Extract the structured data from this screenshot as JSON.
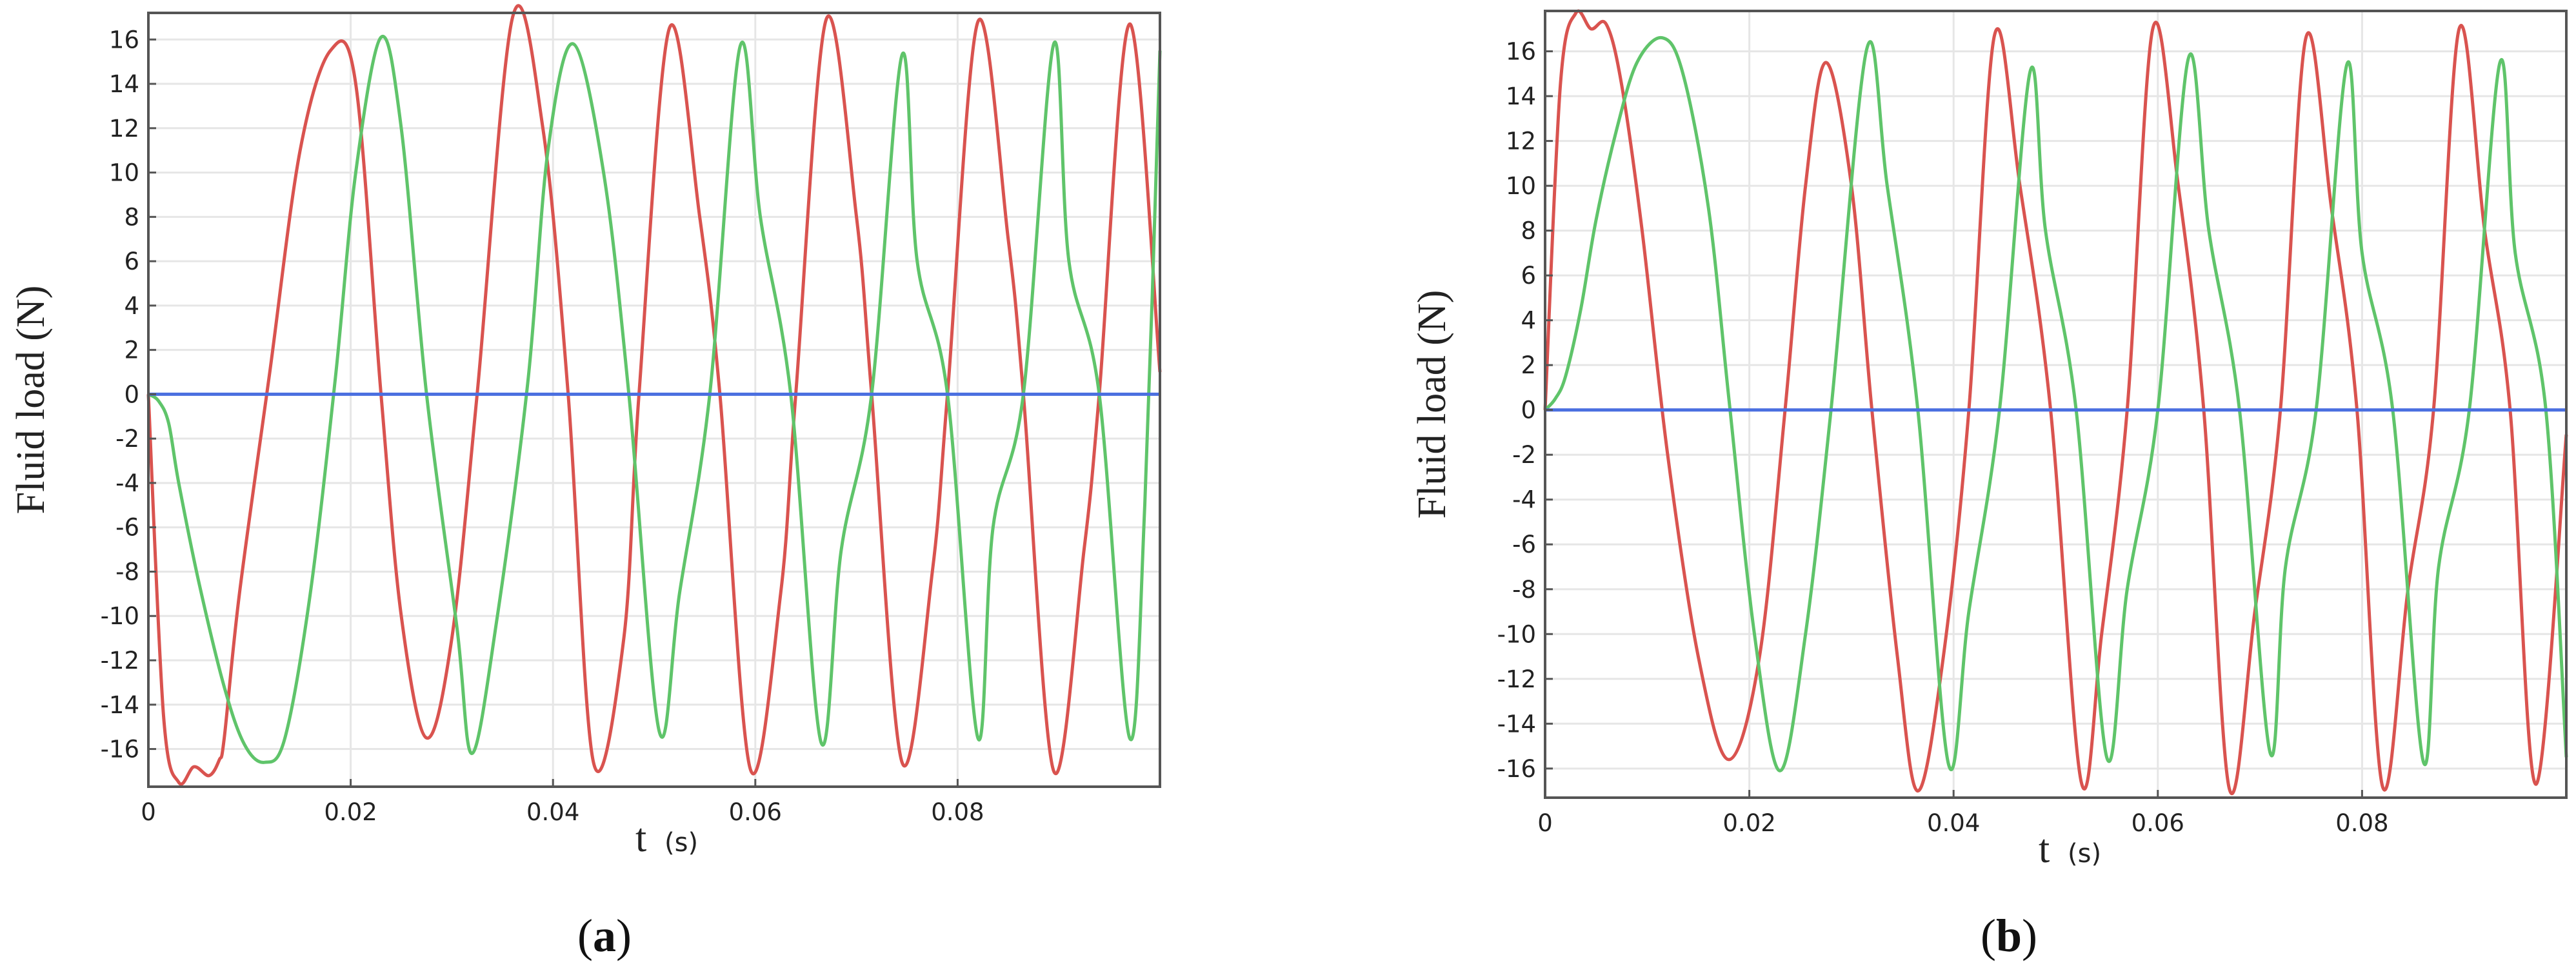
{
  "colors": {
    "red_series": "#d9534f",
    "green_series": "#5fc46a",
    "blue_series": "#4a6fe0",
    "grid": "#e6e6e6",
    "frame": "#555555"
  },
  "chart_data": [
    {
      "type": "line",
      "caption_letter": "a",
      "ylabel": "Fluid load",
      "yunit": "(N)",
      "xlabel": "t",
      "xunit": "(s)",
      "xlim": [
        0,
        0.1
      ],
      "ylim": [
        -17.7,
        17.2
      ],
      "xticks": [
        0,
        0.02,
        0.04,
        0.06,
        0.08
      ],
      "xtick_labels": [
        "0",
        "0.02",
        "0.04",
        "0.06",
        "0.08"
      ],
      "yticks": [
        -16,
        -14,
        -12,
        -10,
        -8,
        -6,
        -4,
        -2,
        0,
        2,
        4,
        6,
        8,
        10,
        12,
        14,
        16
      ],
      "ytick_labels": [
        "-16",
        "-14",
        "-12",
        "-10",
        "-8",
        "-6",
        "-4",
        "-2",
        "0",
        "2",
        "4",
        "6",
        "8",
        "10",
        "12",
        "14",
        "16"
      ],
      "grid": true,
      "series": [
        {
          "color_key": "red_series",
          "x": [
            0,
            0.0015,
            0.003,
            0.0045,
            0.006,
            0.007,
            0.0075,
            0.009,
            0.012,
            0.015,
            0.018,
            0.0205,
            0.023,
            0.025,
            0.0275,
            0.03,
            0.0325,
            0.036,
            0.039,
            0.0415,
            0.044,
            0.047,
            0.0485,
            0.0515,
            0.0545,
            0.0565,
            0.0595,
            0.0625,
            0.064,
            0.067,
            0.07,
            0.0715,
            0.0745,
            0.0775,
            0.079,
            0.082,
            0.085,
            0.0865,
            0.0895,
            0.0925,
            0.094,
            0.097,
            0.1
          ],
          "y": [
            0,
            -14.5,
            -17.5,
            -16.8,
            -17.2,
            -16.5,
            -15.5,
            -9,
            1,
            11,
            15.5,
            14,
            0,
            -10,
            -15.5,
            -11,
            0,
            17,
            12,
            0,
            -16.6,
            -11,
            0,
            16.5,
            8,
            0,
            -16.9,
            -9,
            0,
            16.9,
            8,
            0,
            -16.6,
            -8,
            0,
            16.8,
            7,
            0,
            -17,
            -7,
            0,
            16.7,
            1
          ]
        },
        {
          "color_key": "green_series",
          "x": [
            0,
            0.001,
            0.002,
            0.003,
            0.005,
            0.0075,
            0.0095,
            0.0115,
            0.0135,
            0.016,
            0.0185,
            0.0205,
            0.023,
            0.025,
            0.0275,
            0.0305,
            0.032,
            0.0345,
            0.0375,
            0.0395,
            0.042,
            0.045,
            0.0475,
            0.0505,
            0.0525,
            0.0555,
            0.0585,
            0.0605,
            0.0635,
            0.0665,
            0.0685,
            0.0715,
            0.0745,
            0.076,
            0.079,
            0.082,
            0.0835,
            0.0865,
            0.0895,
            0.091,
            0.094,
            0.097,
            0.0985,
            0.1
          ],
          "y": [
            0,
            -0.3,
            -1.3,
            -4,
            -8.5,
            -13.2,
            -15.8,
            -16.6,
            -15.5,
            -9,
            0.8,
            10,
            16.1,
            12,
            0,
            -10.5,
            -16.2,
            -10,
            0.5,
            11,
            15.8,
            10,
            0,
            -15.2,
            -9,
            0,
            15.7,
            8,
            0,
            -15.7,
            -7,
            0,
            15.3,
            6,
            0,
            -15.5,
            -6,
            0,
            15.8,
            6,
            0,
            -15.5,
            -5,
            15.5
          ]
        },
        {
          "color_key": "blue_series",
          "x": [
            0,
            0.1
          ],
          "y": [
            0,
            0
          ]
        }
      ]
    },
    {
      "type": "line",
      "caption_letter": "b",
      "ylabel": "Fluid load",
      "yunit": "(N)",
      "xlabel": "t",
      "xunit": "(s)",
      "xlim": [
        0,
        0.1
      ],
      "ylim": [
        -17.3,
        17.8
      ],
      "xticks": [
        0,
        0.02,
        0.04,
        0.06,
        0.08
      ],
      "xtick_labels": [
        "0",
        "0.02",
        "0.04",
        "0.06",
        "0.08"
      ],
      "yticks": [
        -16,
        -14,
        -12,
        -10,
        -8,
        -6,
        -4,
        -2,
        0,
        2,
        4,
        6,
        8,
        10,
        12,
        14,
        16
      ],
      "ytick_labels": [
        "-16",
        "-14",
        "-12",
        "-10",
        "-8",
        "-6",
        "-4",
        "-2",
        "0",
        "2",
        "4",
        "6",
        "8",
        "10",
        "12",
        "14",
        "16"
      ],
      "grid": true,
      "series": [
        {
          "color_key": "red_series",
          "x": [
            0,
            0.0015,
            0.003,
            0.0045,
            0.006,
            0.0075,
            0.0095,
            0.012,
            0.015,
            0.018,
            0.021,
            0.0235,
            0.0255,
            0.0275,
            0.03,
            0.032,
            0.0345,
            0.0365,
            0.039,
            0.0415,
            0.044,
            0.0465,
            0.0495,
            0.0525,
            0.0545,
            0.057,
            0.0595,
            0.062,
            0.0645,
            0.067,
            0.0695,
            0.072,
            0.0745,
            0.077,
            0.0795,
            0.082,
            0.0845,
            0.087,
            0.0895,
            0.092,
            0.0945,
            0.097,
            0.1
          ],
          "y": [
            0,
            14.5,
            17.7,
            17.0,
            17.2,
            14.5,
            8,
            -2,
            -11,
            -15.6,
            -11,
            0,
            10,
            15.5,
            10,
            0,
            -11,
            -17,
            -11,
            0,
            16.7,
            10,
            0,
            -16.6,
            -10,
            0,
            17,
            10,
            0,
            -16.9,
            -9,
            0,
            16.6,
            9,
            0,
            -16.8,
            -8,
            0,
            17,
            8,
            0,
            -16.7,
            -1.1
          ]
        },
        {
          "color_key": "green_series",
          "x": [
            0,
            0.001,
            0.002,
            0.0035,
            0.005,
            0.007,
            0.009,
            0.0115,
            0.0135,
            0.016,
            0.018,
            0.0205,
            0.023,
            0.0255,
            0.028,
            0.0315,
            0.0335,
            0.0365,
            0.0395,
            0.0415,
            0.0445,
            0.0475,
            0.049,
            0.052,
            0.055,
            0.057,
            0.06,
            0.063,
            0.065,
            0.068,
            0.071,
            0.0725,
            0.0755,
            0.0785,
            0.08,
            0.083,
            0.086,
            0.0875,
            0.0905,
            0.0935,
            0.095,
            0.098,
            0.1
          ],
          "y": [
            0,
            0.5,
            1.5,
            4.5,
            8.5,
            12.5,
            15.5,
            16.6,
            15,
            9,
            0.5,
            -10,
            -16.1,
            -10,
            0,
            16.1,
            10,
            0,
            -15.8,
            -9,
            0,
            15.1,
            8,
            0,
            -15.5,
            -8,
            0,
            15.7,
            8,
            0,
            -15.3,
            -7,
            0,
            15.4,
            7,
            0,
            -15.7,
            -7,
            0,
            15.5,
            7,
            0,
            -15.5
          ]
        },
        {
          "color_key": "blue_series",
          "x": [
            0,
            0.1
          ],
          "y": [
            0,
            0
          ]
        }
      ]
    }
  ]
}
